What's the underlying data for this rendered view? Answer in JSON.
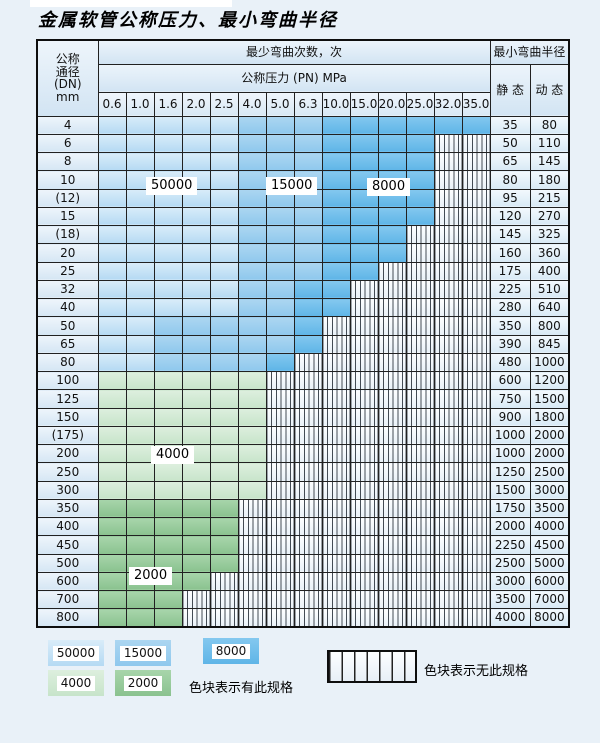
{
  "title": "金属软管公称压力、最小弯曲半径",
  "table": {
    "header": {
      "dn_lines": [
        "公称",
        "通径",
        "(DN)",
        "mm"
      ],
      "cycles_label": "最少弯曲次数，次",
      "pressure_label": "公称压力 (PN) MPa",
      "radius_label": "最小弯曲半径",
      "static_label": "静 态",
      "dynamic_label": "动 态",
      "pressure_columns": [
        "0.6",
        "1.0",
        "1.6",
        "2.0",
        "2.5",
        "4.0",
        "5.0",
        "6.3",
        "10.0",
        "15.0",
        "20.0",
        "25.0",
        "32.0",
        "35.0"
      ]
    },
    "zone_legend": {
      "L": "50000",
      "M": "15000",
      "D": "8000",
      "G4": "4000",
      "G2": "2000",
      "S": "无此规格"
    },
    "rows": [
      {
        "dn": "4",
        "cells": [
          "L",
          "L",
          "L",
          "L",
          "L",
          "M",
          "M",
          "M",
          "D",
          "D",
          "D",
          "D",
          "D",
          "D"
        ],
        "static": "35",
        "dynamic": "80"
      },
      {
        "dn": "6",
        "cells": [
          "L",
          "L",
          "L",
          "L",
          "L",
          "M",
          "M",
          "M",
          "D",
          "D",
          "D",
          "D",
          "S",
          "S"
        ],
        "static": "50",
        "dynamic": "110"
      },
      {
        "dn": "8",
        "cells": [
          "L",
          "L",
          "L",
          "L",
          "L",
          "M",
          "M",
          "M",
          "D",
          "D",
          "D",
          "D",
          "S",
          "S"
        ],
        "static": "65",
        "dynamic": "145"
      },
      {
        "dn": "10",
        "cells": [
          "L",
          "L",
          "L",
          "L",
          "L",
          "M",
          "M",
          "M",
          "D",
          "D",
          "D",
          "D",
          "S",
          "S"
        ],
        "static": "80",
        "dynamic": "180"
      },
      {
        "dn": "(12)",
        "cells": [
          "L",
          "L",
          "L",
          "L",
          "L",
          "M",
          "M",
          "M",
          "D",
          "D",
          "D",
          "D",
          "S",
          "S"
        ],
        "static": "95",
        "dynamic": "215"
      },
      {
        "dn": "15",
        "cells": [
          "L",
          "L",
          "L",
          "L",
          "L",
          "M",
          "M",
          "M",
          "D",
          "D",
          "D",
          "D",
          "S",
          "S"
        ],
        "static": "120",
        "dynamic": "270"
      },
      {
        "dn": "(18)",
        "cells": [
          "L",
          "L",
          "L",
          "L",
          "L",
          "M",
          "M",
          "M",
          "D",
          "D",
          "D",
          "S",
          "S",
          "S"
        ],
        "static": "145",
        "dynamic": "325"
      },
      {
        "dn": "20",
        "cells": [
          "L",
          "L",
          "L",
          "L",
          "L",
          "M",
          "M",
          "M",
          "D",
          "D",
          "D",
          "S",
          "S",
          "S"
        ],
        "static": "160",
        "dynamic": "360"
      },
      {
        "dn": "25",
        "cells": [
          "L",
          "L",
          "L",
          "L",
          "L",
          "M",
          "M",
          "M",
          "D",
          "D",
          "S",
          "S",
          "S",
          "S"
        ],
        "static": "175",
        "dynamic": "400"
      },
      {
        "dn": "32",
        "cells": [
          "L",
          "L",
          "L",
          "L",
          "L",
          "M",
          "M",
          "D",
          "D",
          "S",
          "S",
          "S",
          "S",
          "S"
        ],
        "static": "225",
        "dynamic": "510"
      },
      {
        "dn": "40",
        "cells": [
          "L",
          "L",
          "L",
          "L",
          "L",
          "M",
          "M",
          "D",
          "D",
          "S",
          "S",
          "S",
          "S",
          "S"
        ],
        "static": "280",
        "dynamic": "640"
      },
      {
        "dn": "50",
        "cells": [
          "L",
          "L",
          "M",
          "M",
          "M",
          "M",
          "M",
          "D",
          "S",
          "S",
          "S",
          "S",
          "S",
          "S"
        ],
        "static": "350",
        "dynamic": "800"
      },
      {
        "dn": "65",
        "cells": [
          "L",
          "L",
          "M",
          "M",
          "M",
          "M",
          "M",
          "D",
          "S",
          "S",
          "S",
          "S",
          "S",
          "S"
        ],
        "static": "390",
        "dynamic": "845"
      },
      {
        "dn": "80",
        "cells": [
          "L",
          "L",
          "M",
          "M",
          "M",
          "M",
          "D",
          "S",
          "S",
          "S",
          "S",
          "S",
          "S",
          "S"
        ],
        "static": "480",
        "dynamic": "1000"
      },
      {
        "dn": "100",
        "cells": [
          "G4",
          "G4",
          "G4",
          "G4",
          "G4",
          "G4",
          "S",
          "S",
          "S",
          "S",
          "S",
          "S",
          "S",
          "S"
        ],
        "static": "600",
        "dynamic": "1200"
      },
      {
        "dn": "125",
        "cells": [
          "G4",
          "G4",
          "G4",
          "G4",
          "G4",
          "G4",
          "S",
          "S",
          "S",
          "S",
          "S",
          "S",
          "S",
          "S"
        ],
        "static": "750",
        "dynamic": "1500"
      },
      {
        "dn": "150",
        "cells": [
          "G4",
          "G4",
          "G4",
          "G4",
          "G4",
          "G4",
          "S",
          "S",
          "S",
          "S",
          "S",
          "S",
          "S",
          "S"
        ],
        "static": "900",
        "dynamic": "1800"
      },
      {
        "dn": "(175)",
        "cells": [
          "G4",
          "G4",
          "G4",
          "G4",
          "G4",
          "G4",
          "S",
          "S",
          "S",
          "S",
          "S",
          "S",
          "S",
          "S"
        ],
        "static": "1000",
        "dynamic": "2000"
      },
      {
        "dn": "200",
        "cells": [
          "G4",
          "G4",
          "G4",
          "G4",
          "G4",
          "G4",
          "S",
          "S",
          "S",
          "S",
          "S",
          "S",
          "S",
          "S"
        ],
        "static": "1000",
        "dynamic": "2000"
      },
      {
        "dn": "250",
        "cells": [
          "G4",
          "G4",
          "G4",
          "G4",
          "G4",
          "G4",
          "S",
          "S",
          "S",
          "S",
          "S",
          "S",
          "S",
          "S"
        ],
        "static": "1250",
        "dynamic": "2500"
      },
      {
        "dn": "300",
        "cells": [
          "G4",
          "G4",
          "G4",
          "G4",
          "G4",
          "G4",
          "S",
          "S",
          "S",
          "S",
          "S",
          "S",
          "S",
          "S"
        ],
        "static": "1500",
        "dynamic": "3000"
      },
      {
        "dn": "350",
        "cells": [
          "G2",
          "G2",
          "G2",
          "G2",
          "G2",
          "S",
          "S",
          "S",
          "S",
          "S",
          "S",
          "S",
          "S",
          "S"
        ],
        "static": "1750",
        "dynamic": "3500"
      },
      {
        "dn": "400",
        "cells": [
          "G2",
          "G2",
          "G2",
          "G2",
          "G2",
          "S",
          "S",
          "S",
          "S",
          "S",
          "S",
          "S",
          "S",
          "S"
        ],
        "static": "2000",
        "dynamic": "4000"
      },
      {
        "dn": "450",
        "cells": [
          "G2",
          "G2",
          "G2",
          "G2",
          "G2",
          "S",
          "S",
          "S",
          "S",
          "S",
          "S",
          "S",
          "S",
          "S"
        ],
        "static": "2250",
        "dynamic": "4500"
      },
      {
        "dn": "500",
        "cells": [
          "G2",
          "G2",
          "G2",
          "G2",
          "G2",
          "S",
          "S",
          "S",
          "S",
          "S",
          "S",
          "S",
          "S",
          "S"
        ],
        "static": "2500",
        "dynamic": "5000"
      },
      {
        "dn": "600",
        "cells": [
          "G2",
          "G2",
          "G2",
          "G2",
          "S",
          "S",
          "S",
          "S",
          "S",
          "S",
          "S",
          "S",
          "S",
          "S"
        ],
        "static": "3000",
        "dynamic": "6000"
      },
      {
        "dn": "700",
        "cells": [
          "G2",
          "G2",
          "G2",
          "S",
          "S",
          "S",
          "S",
          "S",
          "S",
          "S",
          "S",
          "S",
          "S",
          "S"
        ],
        "static": "3500",
        "dynamic": "7000"
      },
      {
        "dn": "800",
        "cells": [
          "G2",
          "G2",
          "G2",
          "S",
          "S",
          "S",
          "S",
          "S",
          "S",
          "S",
          "S",
          "S",
          "S",
          "S"
        ],
        "static": "4000",
        "dynamic": "8000"
      }
    ]
  },
  "overlays": [
    {
      "text": "50000"
    },
    {
      "text": "15000"
    },
    {
      "text": "8000"
    },
    {
      "text": "4000"
    },
    {
      "text": "2000"
    }
  ],
  "legend": {
    "swatches": [
      {
        "value": "50000",
        "zone": "L"
      },
      {
        "value": "15000",
        "zone": "M"
      },
      {
        "value": "8000",
        "zone": "D"
      },
      {
        "value": "4000",
        "zone": "G4"
      },
      {
        "value": "2000",
        "zone": "G2"
      }
    ],
    "available_text": "色块表示有此规格",
    "none_text": "色块表示无此规格"
  },
  "colors": {
    "cycles_50000": "#b5daf3",
    "cycles_15000": "#8fc8ed",
    "cycles_8000": "#5fb5e7",
    "cycles_4000": "#c7e4ca",
    "cycles_2000": "#8ac28f",
    "page_background": "#e9f1f8"
  }
}
